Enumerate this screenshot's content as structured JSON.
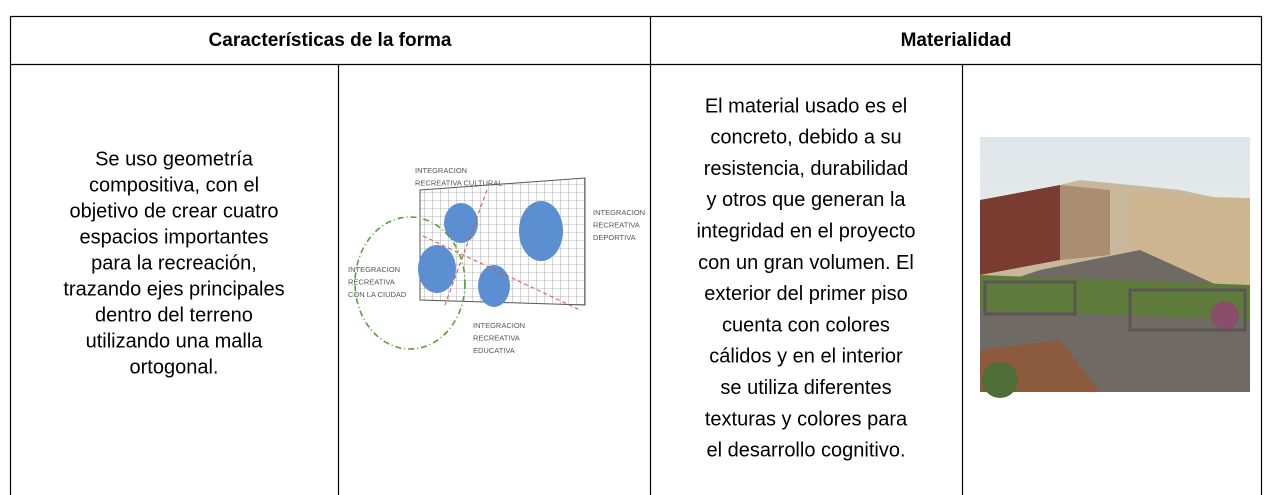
{
  "table": {
    "headers": [
      "Características de la forma",
      "Materialidad"
    ],
    "form": {
      "description": [
        "Se uso geometría",
        "compositiva, con el",
        "objetivo de crear cuatro",
        "espacios importantes",
        "para la recreación,",
        "trazando ejes principales",
        "dentro del terreno",
        "utilizando una malla",
        "ortogonal."
      ],
      "diagram_labels": [
        [
          "INTEGRACION",
          "RECREATIVA CULTURAL"
        ],
        [
          "INTEGRACION",
          "RECREATIVA",
          "DEPORTIVA"
        ],
        [
          "INTEGRACION",
          "RECREATIVA",
          "CON LA CIUDAD"
        ],
        [
          "INTEGRACION",
          "RECREATIVA",
          "EDUCATIVA"
        ]
      ]
    },
    "material": {
      "description": [
        "El material usado es el",
        "concreto, debido a su",
        "resistencia, durabilidad",
        "y otros que generan la",
        "integridad en el proyecto",
        "con un gran volumen. El",
        "exterior del primer piso",
        "cuenta con colores",
        "cálidos y en el interior",
        "se utiliza diferentes",
        "texturas y colores para",
        "el desarrollo cognitivo."
      ]
    }
  }
}
